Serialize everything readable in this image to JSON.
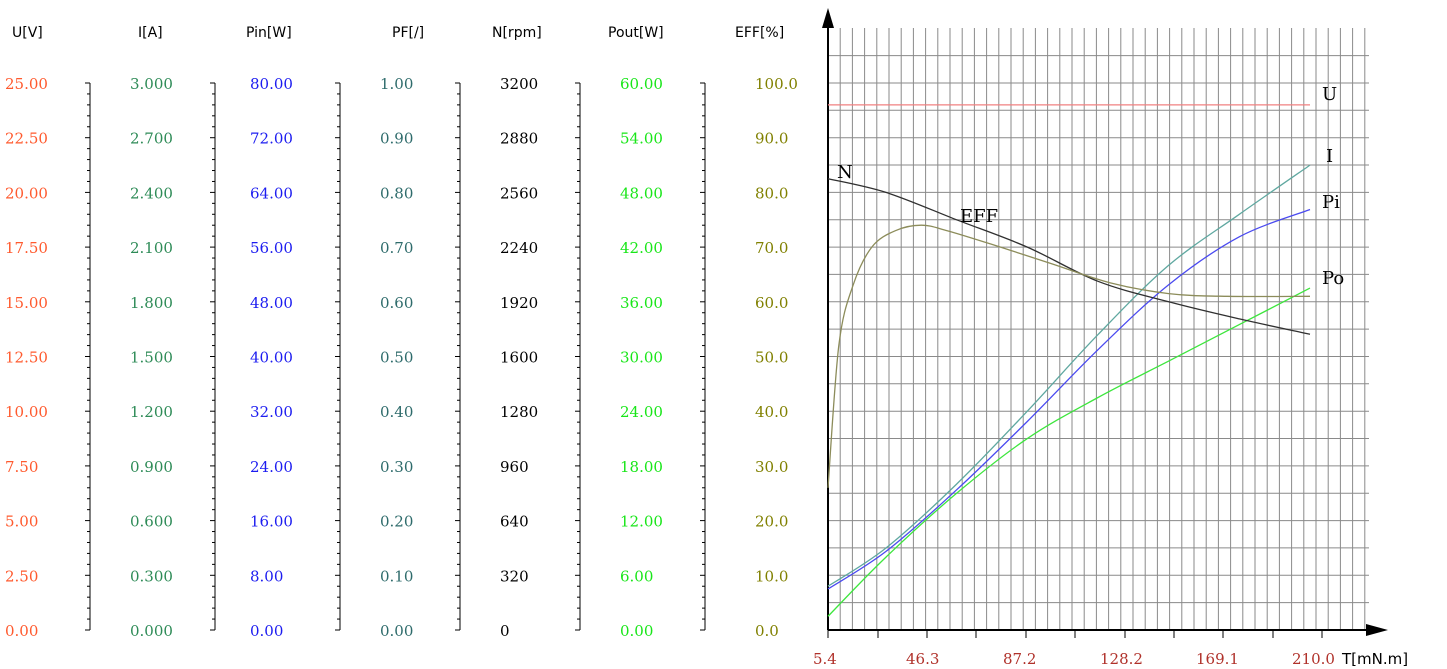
{
  "chart_data": {
    "type": "line",
    "xlabel": "T[mN.m]",
    "x_ticks": [
      "5.4",
      "46.3",
      "87.2",
      "128.2",
      "169.1",
      "210.0"
    ],
    "xlim": [
      5.4,
      210.0
    ],
    "grid": true,
    "axes": [
      {
        "key": "U",
        "label": "U[V]",
        "color": "#ff5a2e",
        "ticks": [
          "25.00",
          "22.50",
          "20.00",
          "17.50",
          "15.00",
          "12.50",
          "10.00",
          "7.50",
          "5.00",
          "2.50",
          "0.00"
        ],
        "range": [
          0,
          25
        ]
      },
      {
        "key": "I",
        "label": "I[A]",
        "color": "#2e8b57",
        "ticks": [
          "3.000",
          "2.700",
          "2.400",
          "2.100",
          "1.800",
          "1.500",
          "1.200",
          "0.900",
          "0.600",
          "0.300",
          "0.000"
        ],
        "range": [
          0,
          3
        ]
      },
      {
        "key": "Pin",
        "label": "Pin[W]",
        "color": "#1c1cf0",
        "ticks": [
          "80.00",
          "72.00",
          "64.00",
          "56.00",
          "48.00",
          "40.00",
          "32.00",
          "24.00",
          "16.00",
          "8.00",
          "0.00"
        ],
        "range": [
          0,
          80
        ]
      },
      {
        "key": "PF",
        "label": "PF[/]",
        "color": "#2e6b6b",
        "ticks": [
          "1.00",
          "0.90",
          "0.80",
          "0.70",
          "0.60",
          "0.50",
          "0.40",
          "0.30",
          "0.20",
          "0.10",
          "0.00"
        ],
        "range": [
          0,
          1
        ]
      },
      {
        "key": "N",
        "label": "N[rpm]",
        "color": "#000000",
        "ticks": [
          "3200",
          "2880",
          "2560",
          "2240",
          "1920",
          "1600",
          "1280",
          "960",
          "640",
          "320",
          "0"
        ],
        "range": [
          0,
          3200
        ]
      },
      {
        "key": "Pout",
        "label": "Pout[W]",
        "color": "#19e619",
        "ticks": [
          "60.00",
          "54.00",
          "48.00",
          "42.00",
          "36.00",
          "30.00",
          "24.00",
          "18.00",
          "12.00",
          "6.00",
          "0.00"
        ],
        "range": [
          0,
          60
        ]
      },
      {
        "key": "EFF",
        "label": "EFF[%]",
        "color": "#808000",
        "ticks": [
          "100.0",
          "90.0",
          "80.0",
          "70.0",
          "60.0",
          "50.0",
          "40.0",
          "30.0",
          "20.0",
          "10.0",
          "0.0"
        ],
        "range": [
          0,
          100
        ]
      }
    ],
    "series": [
      {
        "name": "U",
        "axis": "U",
        "color": "#f08080",
        "points": [
          [
            5.4,
            24.0
          ],
          [
            210.0,
            24.0
          ]
        ]
      },
      {
        "name": "I",
        "axis": "I",
        "color": "#5fa8a0",
        "points": [
          [
            5.4,
            0.24
          ],
          [
            30,
            0.45
          ],
          [
            60,
            0.8
          ],
          [
            90,
            1.2
          ],
          [
            120,
            1.62
          ],
          [
            150,
            2.0
          ],
          [
            180,
            2.28
          ],
          [
            210,
            2.55
          ]
        ]
      },
      {
        "name": "Pi",
        "axis": "Pin",
        "color": "#4a4af0",
        "points": [
          [
            5.4,
            6.0
          ],
          [
            30,
            11.5
          ],
          [
            60,
            20.5
          ],
          [
            90,
            30.5
          ],
          [
            120,
            41.0
          ],
          [
            150,
            50.5
          ],
          [
            180,
            57.5
          ],
          [
            210,
            61.5
          ]
        ]
      },
      {
        "name": "Po",
        "axis": "Pout",
        "color": "#3de63d",
        "points": [
          [
            5.4,
            1.5
          ],
          [
            30,
            8.0
          ],
          [
            60,
            15.0
          ],
          [
            90,
            21.0
          ],
          [
            120,
            25.5
          ],
          [
            150,
            29.5
          ],
          [
            180,
            33.5
          ],
          [
            210,
            37.5
          ]
        ]
      },
      {
        "name": "N",
        "axis": "N",
        "color": "#303030",
        "points": [
          [
            5.4,
            2640
          ],
          [
            30,
            2560
          ],
          [
            60,
            2400
          ],
          [
            90,
            2240
          ],
          [
            120,
            2040
          ],
          [
            150,
            1920
          ],
          [
            180,
            1820
          ],
          [
            210,
            1730
          ]
        ]
      },
      {
        "name": "EFF",
        "axis": "EFF",
        "color": "#8c8c5a",
        "points": [
          [
            5.4,
            26
          ],
          [
            10,
            52
          ],
          [
            16,
            63
          ],
          [
            24,
            70
          ],
          [
            34,
            73
          ],
          [
            45,
            74
          ],
          [
            56,
            73
          ],
          [
            75,
            70.5
          ],
          [
            100,
            67
          ],
          [
            125,
            63.5
          ],
          [
            150,
            61.5
          ],
          [
            175,
            61
          ],
          [
            210,
            61
          ]
        ]
      }
    ]
  }
}
